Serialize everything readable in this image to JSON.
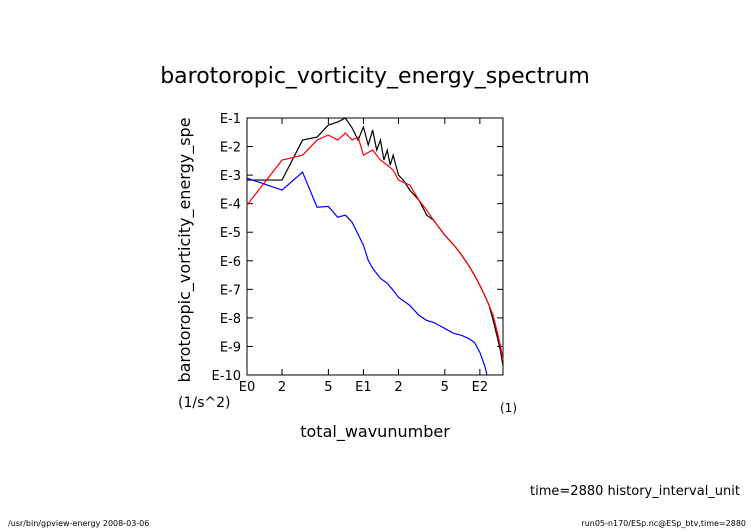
{
  "chart_data": {
    "type": "line",
    "title": "barotoropic_vorticity_energy_spectrum",
    "y_label": "barotoropic_vorticity_energy_spe",
    "y_unit": "(1/s^2)",
    "x_label": "total_wavunumber",
    "x_unit": "(1)",
    "annotation": "time=2880 history_interval_unit",
    "footer_left": "/usr/bin/gpview-energy  2008-03-06",
    "footer_right": "run05-n170/ESp.nc@ESp_btv,time=2880",
    "xlog": true,
    "ylog": true,
    "xlim": [
      1,
      158
    ],
    "ylim": [
      1e-10,
      0.1
    ],
    "xticks": [
      {
        "value": 1,
        "label": "E0"
      },
      2,
      5,
      {
        "value": 10,
        "label": "E1"
      },
      {
        "value": 20,
        "label": "2"
      },
      {
        "value": 50,
        "label": "5"
      },
      {
        "value": 100,
        "label": "E2"
      }
    ],
    "yticks": [
      {
        "value": 0.1,
        "label": "E-1"
      },
      {
        "value": 0.01,
        "label": "E-2"
      },
      {
        "value": 0.001,
        "label": "E-3"
      },
      {
        "value": 0.0001,
        "label": "E-4"
      },
      {
        "value": 1e-05,
        "label": "E-5"
      },
      {
        "value": 1e-06,
        "label": "E-6"
      },
      {
        "value": 1e-07,
        "label": "E-7"
      },
      {
        "value": 1e-08,
        "label": "E-8"
      },
      {
        "value": 1e-09,
        "label": "E-9"
      },
      {
        "value": 1e-10,
        "label": "E-10"
      }
    ],
    "series": [
      {
        "color": "#000000",
        "x": [
          1,
          2,
          3,
          4,
          5,
          6,
          7,
          8,
          9,
          10,
          11,
          12,
          13,
          14,
          15,
          16,
          17,
          18,
          20,
          22,
          25,
          30,
          35,
          40,
          50,
          60,
          70,
          80,
          90,
          100,
          110,
          120,
          130,
          140,
          150,
          158
        ],
        "values": [
          0.00067,
          0.00067,
          0.0169,
          0.0215,
          0.0568,
          0.072,
          0.1,
          0.0446,
          0.0169,
          0.0483,
          0.0113,
          0.0379,
          0.00753,
          0.0169,
          0.00336,
          0.00753,
          0.00224,
          0.00503,
          0.001,
          0.00067,
          0.000298,
          0.000133,
          3.95e-05,
          2.64e-05,
          7.85e-06,
          3.5e-06,
          1.56e-06,
          6.95e-07,
          3.1e-07,
          1.38e-07,
          6.15e-08,
          2.75e-08,
          8.17e-09,
          2.43e-09,
          7.24e-10,
          2.15e-10
        ]
      },
      {
        "color": "#ff0000",
        "x": [
          1,
          2,
          3,
          4,
          5,
          6,
          7,
          8,
          9,
          10,
          12,
          14,
          16,
          18,
          20,
          25,
          30,
          35,
          40,
          50,
          60,
          70,
          80,
          90,
          100,
          110,
          120,
          130,
          140,
          150,
          158
        ],
        "values": [
          8.9e-05,
          0.00336,
          0.005,
          0.0169,
          0.0254,
          0.0169,
          0.0298,
          0.0169,
          0.0215,
          0.005,
          0.00753,
          0.00336,
          0.00224,
          0.0015,
          0.00067,
          0.000447,
          0.000133,
          5.9e-05,
          2.64e-05,
          7.85e-06,
          3.5e-06,
          1.56e-06,
          6.95e-07,
          3.1e-07,
          1.38e-07,
          6.15e-08,
          2.75e-08,
          1.22e-08,
          3.64e-09,
          1.08e-09,
          3.23e-10
        ]
      },
      {
        "color": "#0000ff",
        "x": [
          1,
          2,
          3,
          4,
          5,
          6,
          7,
          8,
          10,
          11,
          12,
          14,
          16,
          18,
          20,
          25,
          30,
          35,
          40,
          50,
          60,
          70,
          80,
          90,
          100,
          110,
          115
        ],
        "values": [
          0.000785,
          0.000298,
          0.00127,
          7.5e-05,
          8e-05,
          3.36e-05,
          3.95e-05,
          2.24e-05,
          3.5e-06,
          1.04e-06,
          5.46e-07,
          2.43e-07,
          1.63e-07,
          9.24e-08,
          5.24e-08,
          2.75e-08,
          1.22e-08,
          8.17e-09,
          6.95e-09,
          4.28e-09,
          2.86e-09,
          2.43e-09,
          1.91e-09,
          1.38e-09,
          6.16e-10,
          2.15e-10,
          1e-10
        ]
      }
    ]
  }
}
